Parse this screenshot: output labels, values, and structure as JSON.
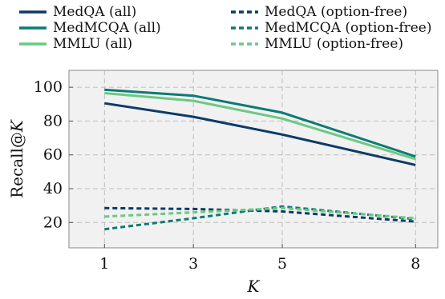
{
  "chart_data": {
    "type": "line",
    "xlabel": "K",
    "ylabel_text": "Recall@",
    "ylabel_var": "K",
    "x": [
      1,
      3,
      5,
      8
    ],
    "xlim": [
      0.2,
      8.5
    ],
    "ylim": [
      5,
      110
    ],
    "xticks": [
      1,
      3,
      5,
      8
    ],
    "yticks": [
      20,
      40,
      60,
      80,
      100
    ],
    "grid": true,
    "legend_position": "top",
    "series": [
      {
        "name": "MedQA (all)",
        "values": [
          90.5,
          82.5,
          72,
          54
        ],
        "color": "#0d3b66",
        "dash": false
      },
      {
        "name": "MedMCQA (all)",
        "values": [
          98.5,
          95,
          85,
          59
        ],
        "color": "#0d7a74",
        "dash": false
      },
      {
        "name": "MMLU (all)",
        "values": [
          96.5,
          92,
          81.5,
          57.5
        ],
        "color": "#6cc883",
        "dash": false
      },
      {
        "name": "MedQA (option-free)",
        "values": [
          28.5,
          28,
          26.5,
          20.5
        ],
        "color": "#0d3b66",
        "dash": true
      },
      {
        "name": "MedMCQA (option-free)",
        "values": [
          16,
          22.5,
          29.5,
          22
        ],
        "color": "#0d7a74",
        "dash": true
      },
      {
        "name": "MMLU (option-free)",
        "values": [
          23.5,
          26,
          28.5,
          22.5
        ],
        "color": "#6cc883",
        "dash": true
      }
    ]
  }
}
